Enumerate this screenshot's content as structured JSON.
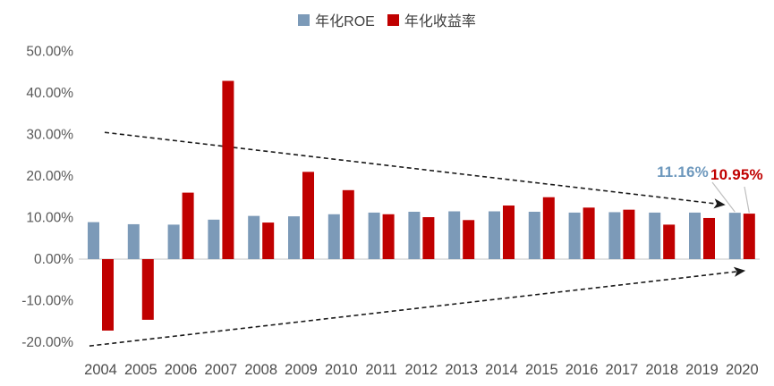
{
  "chart_data": {
    "type": "bar",
    "title": "",
    "categories": [
      "2004",
      "2005",
      "2006",
      "2007",
      "2008",
      "2009",
      "2010",
      "2011",
      "2012",
      "2013",
      "2014",
      "2015",
      "2016",
      "2017",
      "2018",
      "2019",
      "2020"
    ],
    "series": [
      {
        "name": "年化ROE",
        "color": "#7C9AB8",
        "values": [
          8.9,
          8.4,
          8.3,
          9.5,
          10.4,
          10.3,
          10.8,
          11.2,
          11.4,
          11.5,
          11.5,
          11.4,
          11.2,
          11.3,
          11.2,
          11.2,
          11.16
        ]
      },
      {
        "name": "年化收益率",
        "color": "#C00000",
        "values": [
          -17.2,
          -14.6,
          16.0,
          42.9,
          8.8,
          21.0,
          16.6,
          10.8,
          10.1,
          9.4,
          12.9,
          14.9,
          12.4,
          11.9,
          8.3,
          9.9,
          10.95
        ]
      }
    ],
    "ylim": [
      -20,
      50
    ],
    "yticks": [
      {
        "value": 50,
        "label": "50.00%"
      },
      {
        "value": 40,
        "label": "40.00%"
      },
      {
        "value": 30,
        "label": "30.00%"
      },
      {
        "value": 20,
        "label": "20.00%"
      },
      {
        "value": 10,
        "label": "10.00%"
      },
      {
        "value": 0,
        "label": "0.00%"
      },
      {
        "value": -10,
        "label": "-10.00%"
      },
      {
        "value": -20,
        "label": "-20.00%"
      }
    ],
    "grid": false,
    "legend_position": "top-center",
    "colors": {
      "ytick_label": "#595959",
      "xtick_label": "#4d4d4d",
      "baseline": "#d9d9d9",
      "trend_arrow": "#1a1a1a",
      "leader_line": "#bfbfbf",
      "annotation_roe": "#6D98BD",
      "annotation_return": "#C00000"
    },
    "annotations": [
      {
        "text": "11.16%",
        "series": "年化ROE",
        "category": "2020",
        "value": 11.16
      },
      {
        "text": "10.95%",
        "series": "年化收益率",
        "category": "2020",
        "value": 10.95
      }
    ],
    "trend_arrows": [
      {
        "name": "upper-converging-arrow",
        "start_index": 0.1,
        "start_value": 30.5,
        "end_index": 15.55,
        "end_value": 13.1
      },
      {
        "name": "lower-converging-arrow",
        "start_index": -0.28,
        "start_value": -20.9,
        "end_index": 16.05,
        "end_value": -2.8
      }
    ]
  }
}
